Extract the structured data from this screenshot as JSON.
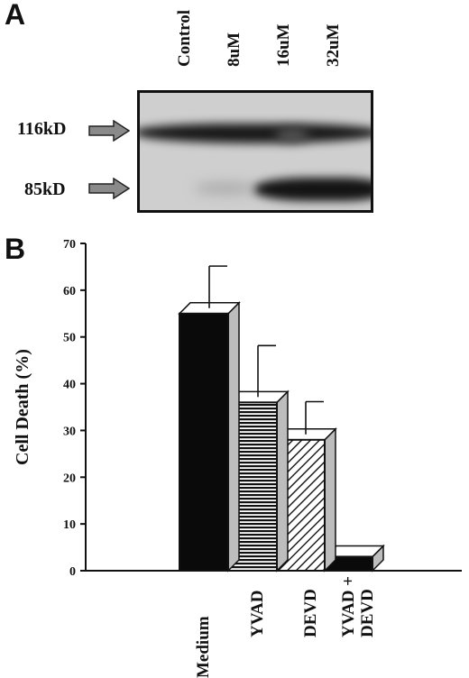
{
  "panel_a": {
    "letter": "A",
    "lanes": [
      "Control",
      "8uM",
      "16uM",
      "32uM"
    ],
    "markers": [
      "116kD",
      "85kD"
    ]
  },
  "panel_b": {
    "letter": "B"
  },
  "chart_data": {
    "type": "bar",
    "style": "3d",
    "title": "",
    "xlabel": "",
    "ylabel": "Cell Death (%)",
    "ylim": [
      0,
      70
    ],
    "yticks": [
      0,
      10,
      20,
      30,
      40,
      50,
      60,
      70
    ],
    "categories": [
      "Medium",
      "YVAD",
      "DEVD",
      "YVAD + DEVD"
    ],
    "values": [
      55,
      36,
      28,
      3
    ],
    "errors": [
      9,
      11,
      7,
      0
    ],
    "fills": [
      "solid-black",
      "horizontal-stripes",
      "diagonal-hatch",
      "solid-black"
    ],
    "grid": false
  }
}
